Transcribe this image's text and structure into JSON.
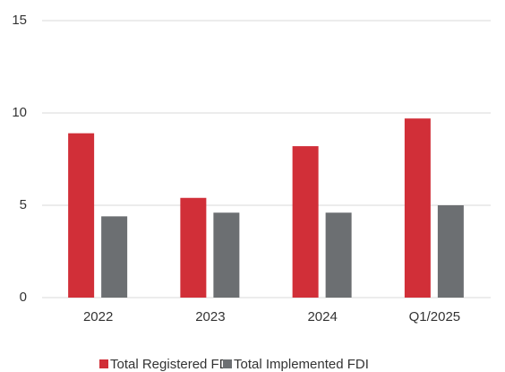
{
  "chart_data": {
    "type": "bar",
    "categories": [
      "2022",
      "2023",
      "2024",
      "Q1/2025"
    ],
    "series": [
      {
        "name": "Total Registered FDI",
        "color": "#d12f38",
        "values": [
          8.9,
          5.4,
          8.2,
          9.7
        ]
      },
      {
        "name": "Total Implemented FDI",
        "color": "#6c6f72",
        "values": [
          4.4,
          4.6,
          4.6,
          5.0
        ]
      }
    ],
    "ylim": [
      0,
      15
    ],
    "yticks": [
      0,
      5,
      10,
      15
    ],
    "grid": true,
    "legend": "bottom"
  }
}
